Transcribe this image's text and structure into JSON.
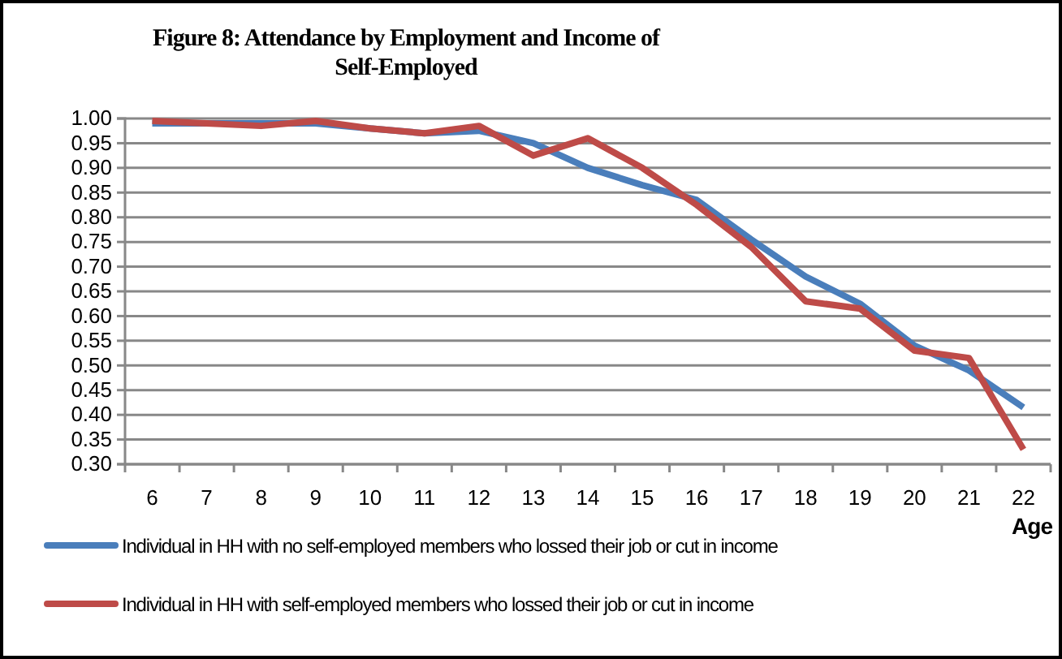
{
  "chart_data": {
    "type": "line",
    "title": "Figure 8: Attendance by Employment and Income of Self-Employed",
    "xlabel": "Age",
    "categories": [
      "6",
      "7",
      "8",
      "9",
      "10",
      "11",
      "12",
      "13",
      "14",
      "15",
      "16",
      "17",
      "18",
      "19",
      "20",
      "21",
      "22"
    ],
    "series": [
      {
        "name": "Individual in HH with no self-employed members who lossed their job or cut in income",
        "color": "#4a7ebb",
        "values": [
          0.99,
          0.99,
          0.99,
          0.99,
          0.98,
          0.97,
          0.975,
          0.95,
          0.9,
          0.865,
          0.835,
          0.755,
          0.68,
          0.625,
          0.54,
          0.49,
          0.415
        ]
      },
      {
        "name": "Individual in HH with self-employed members who lossed their job or cut in income",
        "color": "#be4b48",
        "values": [
          0.995,
          0.99,
          0.985,
          0.995,
          0.98,
          0.97,
          0.985,
          0.925,
          0.96,
          0.9,
          0.825,
          0.74,
          0.63,
          0.615,
          0.53,
          0.515,
          0.33
        ]
      }
    ],
    "ylim": [
      0.3,
      1.0
    ],
    "yticks": [
      {
        "value": 0.3,
        "label": "0.30"
      },
      {
        "value": 0.35,
        "label": "0.35"
      },
      {
        "value": 0.4,
        "label": "0.40"
      },
      {
        "value": 0.45,
        "label": "0.45"
      },
      {
        "value": 0.5,
        "label": "0.50"
      },
      {
        "value": 0.55,
        "label": "0.55"
      },
      {
        "value": 0.6,
        "label": "0.60"
      },
      {
        "value": 0.65,
        "label": "0.65"
      },
      {
        "value": 0.7,
        "label": "0.70"
      },
      {
        "value": 0.75,
        "label": "0.75"
      },
      {
        "value": 0.8,
        "label": "0.80"
      },
      {
        "value": 0.85,
        "label": "0.85"
      },
      {
        "value": 0.9,
        "label": "0.90"
      },
      {
        "value": 0.95,
        "label": "0.95"
      },
      {
        "value": 1.0,
        "label": "1.00"
      }
    ],
    "grid": "y",
    "legend": "bottom",
    "marker": "none",
    "line_style": "solid"
  }
}
